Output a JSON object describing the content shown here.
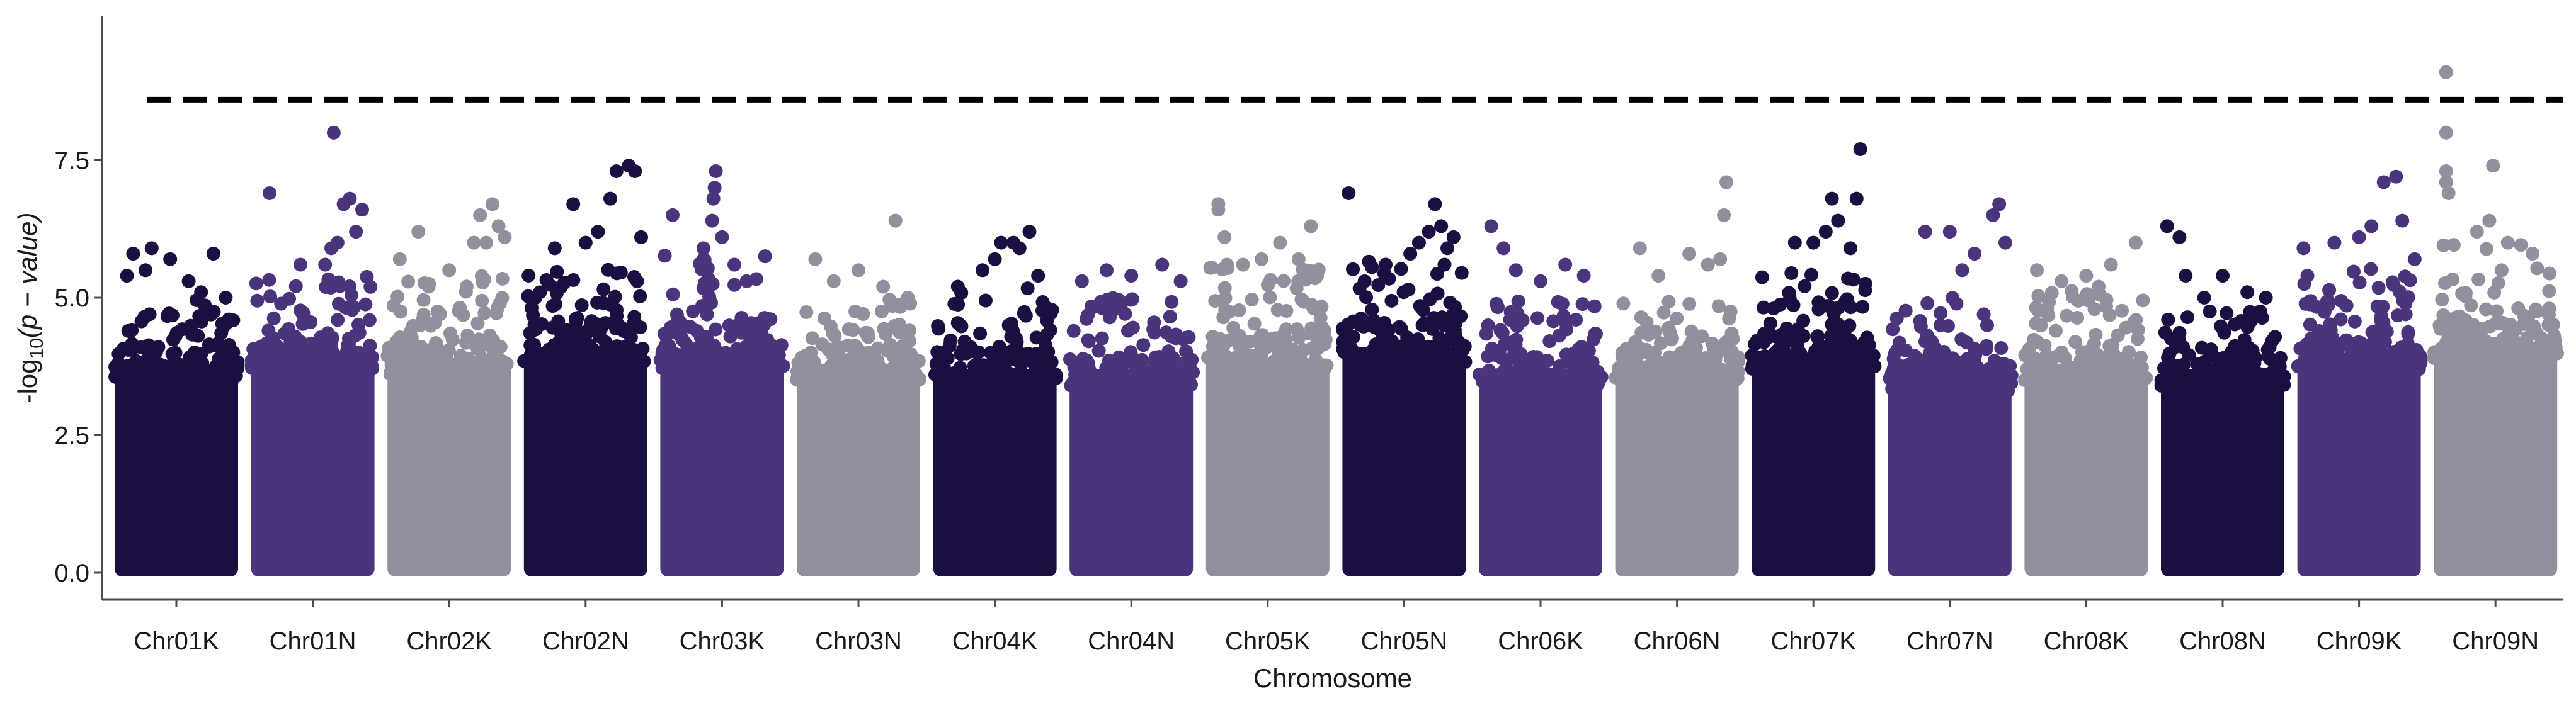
{
  "chart_data": {
    "type": "scatter",
    "subtype": "manhattan",
    "title": "",
    "xlabel": "Chromosome",
    "ylabel_prefix": "-log",
    "ylabel_sub": "10",
    "ylabel_inner": "(p − value)",
    "ylim": [
      -0.15,
      9.15
    ],
    "yticks": [
      0.0,
      2.5,
      5.0,
      7.5
    ],
    "ytick_labels": [
      "0.0",
      "2.5",
      "5.0",
      "7.5"
    ],
    "threshold": 8.6,
    "grid": false,
    "legend": "none",
    "colors": [
      "#1b0e40",
      "#4a347c",
      "#938f9d"
    ],
    "categories": [
      "Chr01K",
      "Chr01N",
      "Chr02K",
      "Chr02N",
      "Chr03K",
      "Chr03N",
      "Chr04K",
      "Chr04N",
      "Chr05K",
      "Chr05N",
      "Chr06K",
      "Chr06N",
      "Chr07K",
      "Chr07N",
      "Chr08K",
      "Chr08N",
      "Chr09K",
      "Chr09N"
    ],
    "series": [
      {
        "chromosome": "Chr01K",
        "color_index": 0,
        "dense_max": 3.8,
        "band": [
          4.0,
          5.0
        ],
        "top_points": [
          [
            0.1,
            5.4
          ],
          [
            0.15,
            5.8
          ],
          [
            0.3,
            5.9
          ],
          [
            0.45,
            5.7
          ],
          [
            0.6,
            5.3
          ],
          [
            0.8,
            5.8
          ],
          [
            0.9,
            5.0
          ],
          [
            0.7,
            5.1
          ],
          [
            0.25,
            5.5
          ]
        ]
      },
      {
        "chromosome": "Chr01N",
        "color_index": 1,
        "dense_max": 4.0,
        "band": [
          4.2,
          5.4
        ],
        "top_points": [
          [
            0.15,
            6.9
          ],
          [
            0.4,
            5.6
          ],
          [
            0.6,
            5.6
          ],
          [
            0.65,
            5.9
          ],
          [
            0.7,
            6.0
          ],
          [
            0.75,
            6.7
          ],
          [
            0.8,
            6.8
          ],
          [
            0.85,
            6.2
          ],
          [
            0.9,
            6.6
          ],
          [
            0.67,
            8.0
          ]
        ]
      },
      {
        "chromosome": "Chr02K",
        "color_index": 2,
        "dense_max": 3.9,
        "band": [
          4.2,
          5.4
        ],
        "top_points": [
          [
            0.1,
            5.7
          ],
          [
            0.25,
            6.2
          ],
          [
            0.5,
            5.5
          ],
          [
            0.7,
            6.0
          ],
          [
            0.75,
            6.5
          ],
          [
            0.85,
            6.7
          ],
          [
            0.9,
            6.3
          ],
          [
            0.95,
            6.1
          ],
          [
            0.8,
            6.0
          ]
        ]
      },
      {
        "chromosome": "Chr02N",
        "color_index": 0,
        "dense_max": 4.1,
        "band": [
          4.5,
          5.6
        ],
        "top_points": [
          [
            0.25,
            5.9
          ],
          [
            0.4,
            6.7
          ],
          [
            0.5,
            6.0
          ],
          [
            0.6,
            6.2
          ],
          [
            0.7,
            6.8
          ],
          [
            0.75,
            7.3
          ],
          [
            0.85,
            7.4
          ],
          [
            0.9,
            7.3
          ],
          [
            0.95,
            6.1
          ]
        ]
      },
      {
        "chromosome": "Chr03K",
        "color_index": 1,
        "dense_max": 4.0,
        "band": [
          4.3,
          5.8
        ],
        "top_points": [
          [
            0.1,
            6.5
          ],
          [
            0.35,
            5.9
          ],
          [
            0.42,
            6.4
          ],
          [
            0.43,
            6.8
          ],
          [
            0.44,
            7.0
          ],
          [
            0.45,
            7.3
          ],
          [
            0.5,
            6.1
          ],
          [
            0.6,
            5.6
          ],
          [
            0.7,
            5.3
          ]
        ]
      },
      {
        "chromosome": "Chr03N",
        "color_index": 2,
        "dense_max": 3.8,
        "band": [
          4.0,
          5.0
        ],
        "top_points": [
          [
            0.15,
            5.7
          ],
          [
            0.3,
            5.3
          ],
          [
            0.5,
            5.5
          ],
          [
            0.7,
            5.2
          ],
          [
            0.8,
            6.4
          ],
          [
            0.9,
            5.0
          ]
        ]
      },
      {
        "chromosome": "Chr04K",
        "color_index": 0,
        "dense_max": 3.7,
        "band": [
          4.0,
          5.2
        ],
        "top_points": [
          [
            0.2,
            5.2
          ],
          [
            0.4,
            5.5
          ],
          [
            0.5,
            5.7
          ],
          [
            0.55,
            6.0
          ],
          [
            0.65,
            6.0
          ],
          [
            0.7,
            5.9
          ],
          [
            0.78,
            6.2
          ],
          [
            0.85,
            5.4
          ]
        ]
      },
      {
        "chromosome": "Chr04N",
        "color_index": 1,
        "dense_max": 3.7,
        "band": [
          3.9,
          5.0
        ],
        "top_points": [
          [
            0.1,
            5.3
          ],
          [
            0.3,
            5.5
          ],
          [
            0.5,
            5.4
          ],
          [
            0.75,
            5.6
          ],
          [
            0.9,
            5.3
          ]
        ]
      },
      {
        "chromosome": "Chr05K",
        "color_index": 2,
        "dense_max": 3.9,
        "band": [
          4.3,
          5.6
        ],
        "top_points": [
          [
            0.1,
            6.6
          ],
          [
            0.1,
            6.7
          ],
          [
            0.15,
            6.1
          ],
          [
            0.3,
            5.6
          ],
          [
            0.45,
            5.7
          ],
          [
            0.6,
            6.0
          ],
          [
            0.75,
            5.7
          ],
          [
            0.85,
            6.3
          ],
          [
            0.9,
            5.4
          ]
        ]
      },
      {
        "chromosome": "Chr05N",
        "color_index": 0,
        "dense_max": 4.1,
        "band": [
          4.5,
          5.7
        ],
        "top_points": [
          [
            0.05,
            6.9
          ],
          [
            0.35,
            5.6
          ],
          [
            0.55,
            5.8
          ],
          [
            0.62,
            6.0
          ],
          [
            0.7,
            6.2
          ],
          [
            0.75,
            6.7
          ],
          [
            0.8,
            6.3
          ],
          [
            0.85,
            5.9
          ],
          [
            0.9,
            6.1
          ]
        ]
      },
      {
        "chromosome": "Chr06K",
        "color_index": 1,
        "dense_max": 3.7,
        "band": [
          3.9,
          5.0
        ],
        "top_points": [
          [
            0.1,
            6.3
          ],
          [
            0.2,
            5.9
          ],
          [
            0.3,
            5.5
          ],
          [
            0.5,
            5.3
          ],
          [
            0.7,
            5.6
          ],
          [
            0.85,
            5.4
          ]
        ]
      },
      {
        "chromosome": "Chr06N",
        "color_index": 2,
        "dense_max": 3.8,
        "band": [
          4.0,
          5.0
        ],
        "top_points": [
          [
            0.2,
            5.9
          ],
          [
            0.35,
            5.4
          ],
          [
            0.6,
            5.8
          ],
          [
            0.75,
            5.6
          ],
          [
            0.88,
            6.5
          ],
          [
            0.9,
            7.1
          ],
          [
            0.85,
            5.7
          ]
        ]
      },
      {
        "chromosome": "Chr07K",
        "color_index": 0,
        "dense_max": 4.0,
        "band": [
          4.3,
          5.5
        ],
        "top_points": [
          [
            0.35,
            6.0
          ],
          [
            0.5,
            6.0
          ],
          [
            0.6,
            6.2
          ],
          [
            0.65,
            6.8
          ],
          [
            0.7,
            6.4
          ],
          [
            0.8,
            5.9
          ],
          [
            0.85,
            6.8
          ],
          [
            0.88,
            7.7
          ]
        ]
      },
      {
        "chromosome": "Chr07N",
        "color_index": 1,
        "dense_max": 3.6,
        "band": [
          3.8,
          5.0
        ],
        "top_points": [
          [
            0.3,
            6.2
          ],
          [
            0.5,
            6.2
          ],
          [
            0.6,
            5.5
          ],
          [
            0.7,
            5.8
          ],
          [
            0.85,
            6.5
          ],
          [
            0.9,
            6.7
          ],
          [
            0.95,
            6.0
          ]
        ]
      },
      {
        "chromosome": "Chr08K",
        "color_index": 2,
        "dense_max": 3.8,
        "band": [
          4.0,
          5.2
        ],
        "top_points": [
          [
            0.1,
            5.5
          ],
          [
            0.3,
            5.3
          ],
          [
            0.5,
            5.4
          ],
          [
            0.7,
            5.6
          ],
          [
            0.9,
            6.0
          ],
          [
            0.6,
            5.2
          ]
        ]
      },
      {
        "chromosome": "Chr08N",
        "color_index": 0,
        "dense_max": 3.7,
        "band": [
          3.9,
          4.8
        ],
        "top_points": [
          [
            0.05,
            6.3
          ],
          [
            0.15,
            6.1
          ],
          [
            0.2,
            5.4
          ],
          [
            0.35,
            5.0
          ],
          [
            0.5,
            5.4
          ],
          [
            0.7,
            5.1
          ],
          [
            0.85,
            5.0
          ]
        ]
      },
      {
        "chromosome": "Chr09K",
        "color_index": 1,
        "dense_max": 4.0,
        "band": [
          4.3,
          5.6
        ],
        "top_points": [
          [
            0.05,
            5.9
          ],
          [
            0.3,
            6.0
          ],
          [
            0.5,
            6.1
          ],
          [
            0.6,
            6.3
          ],
          [
            0.7,
            7.1
          ],
          [
            0.8,
            7.2
          ],
          [
            0.85,
            6.4
          ],
          [
            0.95,
            5.7
          ]
        ]
      },
      {
        "chromosome": "Chr09N",
        "color_index": 2,
        "dense_max": 4.2,
        "band": [
          4.5,
          6.0
        ],
        "top_points": [
          [
            0.1,
            9.1
          ],
          [
            0.1,
            8.0
          ],
          [
            0.1,
            7.3
          ],
          [
            0.1,
            7.1
          ],
          [
            0.12,
            6.9
          ],
          [
            0.48,
            7.4
          ],
          [
            0.45,
            6.4
          ],
          [
            0.35,
            6.2
          ],
          [
            0.6,
            6.0
          ],
          [
            0.8,
            5.8
          ]
        ]
      }
    ]
  }
}
